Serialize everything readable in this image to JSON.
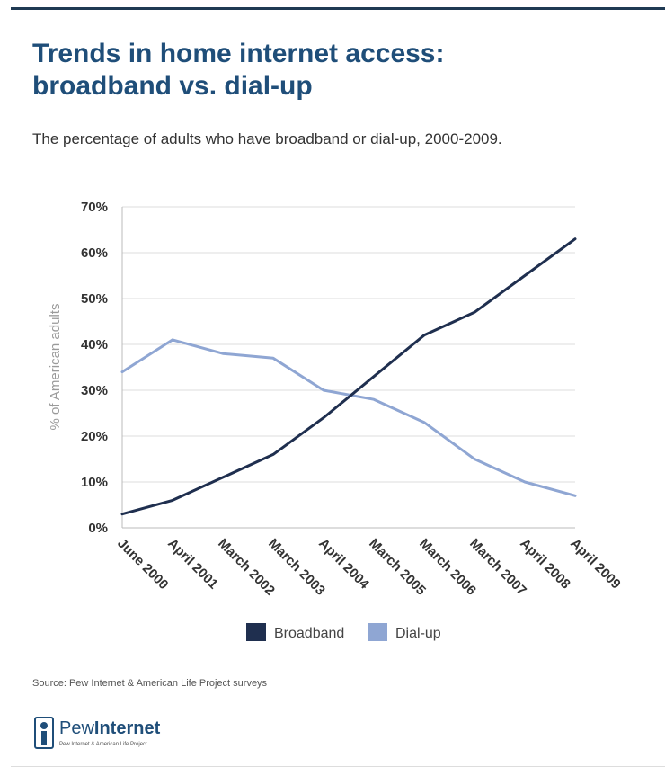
{
  "title_line1": "Trends in home internet access:",
  "title_line2": "broadband vs. dial-up",
  "subtitle": "The percentage of adults who have broadband or dial-up, 2000-2009.",
  "source": "Source: Pew Internet & American Life Project surveys",
  "logo": {
    "brand_a": "Pew",
    "brand_b": "Internet",
    "tagline": "Pew Internet & American Life Project"
  },
  "colors": {
    "broadband": "#1f2f4f",
    "dialup": "#8fa6d3",
    "title": "#1f4e79",
    "grid": "#dddddd"
  },
  "chart_data": {
    "type": "line",
    "title": "Trends in home internet access: broadband vs. dial-up",
    "subtitle": "The percentage of adults who have broadband or dial-up, 2000-2009.",
    "xlabel": "",
    "ylabel": "% of American adults",
    "categories": [
      "June 2000",
      "April 2001",
      "March 2002",
      "March 2003",
      "April 2004",
      "March 2005",
      "March 2006",
      "March 2007",
      "April 2008",
      "April 2009"
    ],
    "ylim": [
      0,
      70
    ],
    "yticks": [
      0,
      10,
      20,
      30,
      40,
      50,
      60,
      70
    ],
    "ytick_labels": [
      "0%",
      "10%",
      "20%",
      "30%",
      "40%",
      "50%",
      "60%",
      "70%"
    ],
    "grid": true,
    "legend": "bottom",
    "series": [
      {
        "name": "Broadband",
        "values": [
          3,
          6,
          11,
          16,
          24,
          33,
          42,
          47,
          55,
          63
        ]
      },
      {
        "name": "Dial-up",
        "values": [
          34,
          41,
          38,
          37,
          30,
          28,
          23,
          15,
          10,
          7
        ]
      }
    ]
  }
}
